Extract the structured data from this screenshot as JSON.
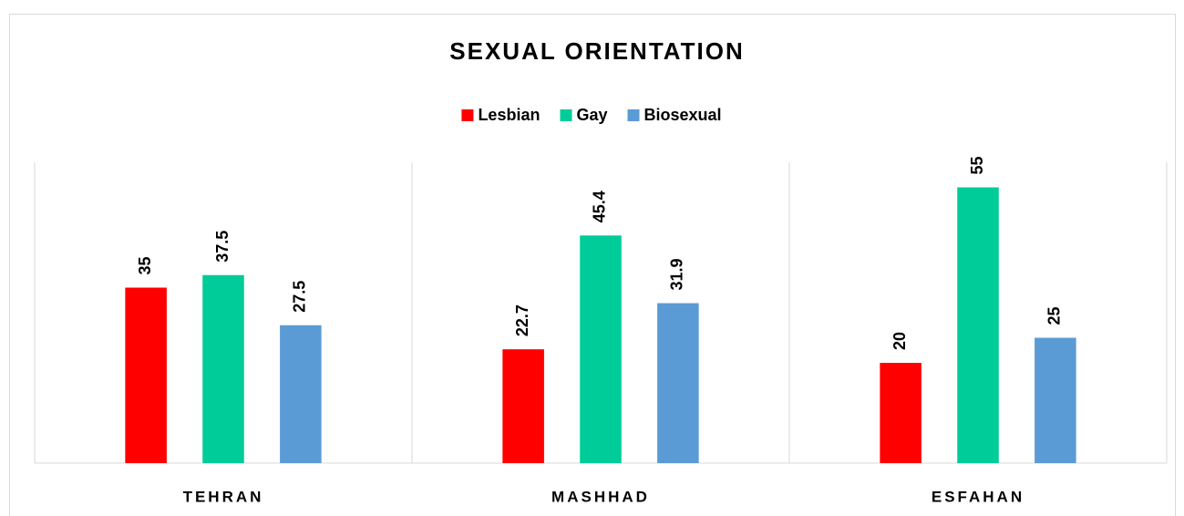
{
  "chart_data": {
    "type": "bar",
    "title": "SEXUAL ORIENTATION",
    "categories": [
      "TEHRAN",
      "MASHHAD",
      "ESFAHAN"
    ],
    "series": [
      {
        "name": "Lesbian",
        "color": "#ff0000",
        "values": [
          35,
          22.7,
          20
        ]
      },
      {
        "name": "Gay",
        "color": "#00cc99",
        "values": [
          37.5,
          45.4,
          55
        ]
      },
      {
        "name": "Biosexual",
        "color": "#5b9bd5",
        "values": [
          27.5,
          31.9,
          25
        ]
      }
    ],
    "ylim": [
      0,
      60
    ],
    "legend": "top"
  }
}
